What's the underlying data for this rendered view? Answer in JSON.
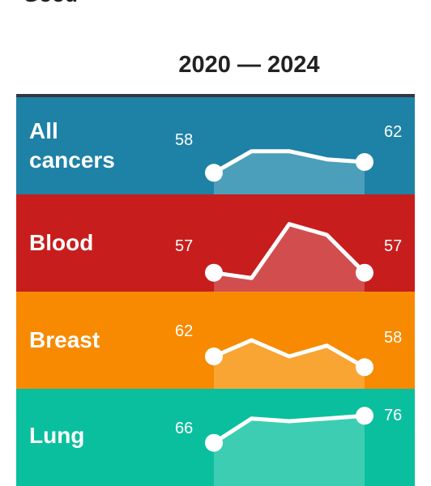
{
  "header": {
    "cut_heading": "Good",
    "period": "2020 — 2024"
  },
  "rows": [
    {
      "name": "All cancers",
      "label_lines": [
        "All",
        "cancers"
      ],
      "color": "#1e81a6",
      "area_color": "#4c9fba",
      "start_value": "58",
      "end_value": "62",
      "series": [
        58,
        66,
        66,
        63,
        62
      ]
    },
    {
      "name": "Blood",
      "label_lines": [
        "Blood"
      ],
      "color": "#c81d1d",
      "area_color": "#d24e4e",
      "start_value": "57",
      "end_value": "57",
      "series": [
        57,
        55,
        75,
        71,
        57
      ]
    },
    {
      "name": "Breast",
      "label_lines": [
        "Breast"
      ],
      "color": "#f78a00",
      "area_color": "#f8a533",
      "start_value": "62",
      "end_value": "58",
      "series": [
        62,
        68,
        62,
        66,
        58
      ]
    },
    {
      "name": "Lung",
      "label_lines": [
        "Lung"
      ],
      "color": "#0abf9e",
      "area_color": "#3dcdb3",
      "start_value": "66",
      "end_value": "76",
      "series": [
        66,
        75,
        74,
        75,
        76
      ]
    }
  ]
}
